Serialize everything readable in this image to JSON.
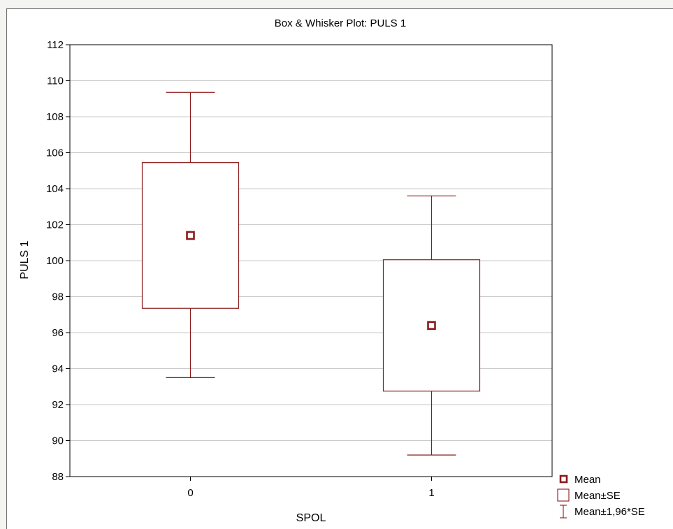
{
  "chart_data": {
    "type": "box",
    "title": "Box & Whisker Plot: PULS 1",
    "xlabel": "SPOL",
    "ylabel": "PULS 1",
    "ylim": [
      88,
      112
    ],
    "yticks": [
      88,
      90,
      92,
      94,
      96,
      98,
      100,
      102,
      104,
      106,
      108,
      110,
      112
    ],
    "categories": [
      "0",
      "1"
    ],
    "boxes": [
      {
        "category": "0",
        "mean": 101.4,
        "se_low": 97.35,
        "se_high": 105.45,
        "ci_low": 93.5,
        "ci_high": 109.35
      },
      {
        "category": "1",
        "mean": 96.4,
        "se_low": 92.75,
        "se_high": 100.05,
        "ci_low": 89.2,
        "ci_high": 103.6
      }
    ],
    "grid": true,
    "legend_position": "bottom-right",
    "legend": [
      {
        "symbol": "mean-marker",
        "label": "Mean"
      },
      {
        "symbol": "box",
        "label": "Mean±SE"
      },
      {
        "symbol": "whisker",
        "label": "Mean±1,96*SE"
      }
    ],
    "colors": {
      "series": "#8b1a1a",
      "grid": "#c8c8c8",
      "axis": "#000000"
    }
  }
}
